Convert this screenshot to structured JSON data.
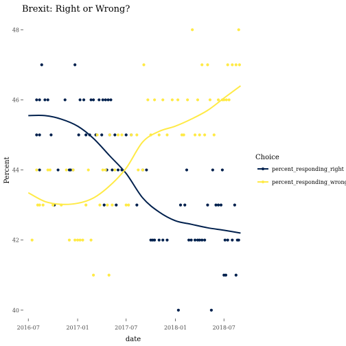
{
  "chart_data": {
    "type": "scatter",
    "title": "Brexit: Right or Wrong?",
    "xlabel": "date",
    "ylabel": "Percent",
    "x_range": [
      "2016-06-15",
      "2018-09-05"
    ],
    "ylim": [
      39.8,
      48.3
    ],
    "x_ticks": [
      {
        "date": "2016-07-01",
        "label": "2016-07"
      },
      {
        "date": "2017-01-01",
        "label": "2017-01"
      },
      {
        "date": "2017-07-01",
        "label": "2017-07"
      },
      {
        "date": "2018-01-01",
        "label": "2018-01"
      },
      {
        "date": "2018-07-01",
        "label": "2018-07"
      }
    ],
    "y_ticks": [
      40,
      42,
      44,
      46,
      48
    ],
    "grid": false,
    "legend": {
      "title": "Choice",
      "position": "right"
    },
    "series": [
      {
        "name": "percent_responding_right",
        "color": "#00204D",
        "points": [
          [
            "2016-08-01",
            45
          ],
          [
            "2016-08-01",
            46
          ],
          [
            "2016-08-12",
            45
          ],
          [
            "2016-08-12",
            46
          ],
          [
            "2016-08-12",
            44
          ],
          [
            "2016-08-20",
            47
          ],
          [
            "2016-09-01",
            46
          ],
          [
            "2016-09-12",
            46
          ],
          [
            "2016-09-24",
            45
          ],
          [
            "2016-10-06",
            43
          ],
          [
            "2016-10-20",
            44
          ],
          [
            "2016-11-15",
            46
          ],
          [
            "2016-12-01",
            44
          ],
          [
            "2016-12-06",
            44
          ],
          [
            "2016-12-15",
            44
          ],
          [
            "2016-12-22",
            47
          ],
          [
            "2017-01-05",
            45
          ],
          [
            "2017-01-10",
            46
          ],
          [
            "2017-01-24",
            46
          ],
          [
            "2017-02-01",
            45
          ],
          [
            "2017-02-15",
            45
          ],
          [
            "2017-02-20",
            46
          ],
          [
            "2017-03-01",
            46
          ],
          [
            "2017-03-10",
            45
          ],
          [
            "2017-03-22",
            46
          ],
          [
            "2017-04-01",
            45
          ],
          [
            "2017-04-05",
            46
          ],
          [
            "2017-04-10",
            43
          ],
          [
            "2017-04-15",
            46
          ],
          [
            "2017-04-20",
            44
          ],
          [
            "2017-04-25",
            46
          ],
          [
            "2017-05-01",
            45
          ],
          [
            "2017-05-05",
            46
          ],
          [
            "2017-05-10",
            44
          ],
          [
            "2017-05-20",
            45
          ],
          [
            "2017-05-25",
            43
          ],
          [
            "2017-06-01",
            44
          ],
          [
            "2017-06-15",
            44
          ],
          [
            "2017-07-01",
            45
          ],
          [
            "2017-07-20",
            45
          ],
          [
            "2017-08-10",
            43
          ],
          [
            "2017-09-01",
            44
          ],
          [
            "2017-09-15",
            44
          ],
          [
            "2017-10-01",
            42
          ],
          [
            "2017-10-08",
            42
          ],
          [
            "2017-10-15",
            42
          ],
          [
            "2017-11-01",
            42
          ],
          [
            "2017-11-15",
            42
          ],
          [
            "2017-12-01",
            42
          ],
          [
            "2018-01-12",
            40
          ],
          [
            "2018-01-20",
            43
          ],
          [
            "2018-02-05",
            43
          ],
          [
            "2018-02-12",
            44
          ],
          [
            "2018-02-20",
            42
          ],
          [
            "2018-03-01",
            42
          ],
          [
            "2018-03-15",
            42
          ],
          [
            "2018-03-25",
            42
          ],
          [
            "2018-04-01",
            42
          ],
          [
            "2018-04-10",
            42
          ],
          [
            "2018-04-20",
            42
          ],
          [
            "2018-05-01",
            43
          ],
          [
            "2018-05-15",
            40
          ],
          [
            "2018-05-20",
            44
          ],
          [
            "2018-06-01",
            43
          ],
          [
            "2018-06-10",
            43
          ],
          [
            "2018-06-20",
            43
          ],
          [
            "2018-06-25",
            44
          ],
          [
            "2018-07-01",
            41
          ],
          [
            "2018-07-05",
            42
          ],
          [
            "2018-07-08",
            41
          ],
          [
            "2018-07-15",
            42
          ],
          [
            "2018-08-01",
            42
          ],
          [
            "2018-08-10",
            43
          ],
          [
            "2018-08-15",
            41
          ],
          [
            "2018-08-20",
            42
          ],
          [
            "2018-08-25",
            42
          ]
        ],
        "trend": [
          [
            "2016-07-01",
            45.55
          ],
          [
            "2016-09-01",
            45.55
          ],
          [
            "2016-11-01",
            45.45
          ],
          [
            "2017-01-01",
            45.25
          ],
          [
            "2017-03-01",
            44.9
          ],
          [
            "2017-05-01",
            44.4
          ],
          [
            "2017-07-01",
            43.9
          ],
          [
            "2017-09-01",
            43.2
          ],
          [
            "2017-11-01",
            42.8
          ],
          [
            "2018-01-01",
            42.55
          ],
          [
            "2018-03-01",
            42.45
          ],
          [
            "2018-05-01",
            42.35
          ],
          [
            "2018-07-01",
            42.28
          ],
          [
            "2018-09-01",
            42.2
          ]
        ]
      },
      {
        "name": "percent_responding_wrong",
        "color": "#FFEA46",
        "points": [
          [
            "2016-07-15",
            42
          ],
          [
            "2016-08-01",
            44
          ],
          [
            "2016-08-05",
            43
          ],
          [
            "2016-08-12",
            43
          ],
          [
            "2016-08-25",
            43
          ],
          [
            "2016-09-12",
            44
          ],
          [
            "2016-09-20",
            44
          ],
          [
            "2016-10-01",
            43
          ],
          [
            "2016-11-01",
            43
          ],
          [
            "2016-11-20",
            44
          ],
          [
            "2016-12-01",
            42
          ],
          [
            "2016-12-15",
            44
          ],
          [
            "2016-12-22",
            42
          ],
          [
            "2017-01-01",
            42
          ],
          [
            "2017-01-10",
            42
          ],
          [
            "2017-01-20",
            42
          ],
          [
            "2017-02-01",
            43
          ],
          [
            "2017-02-10",
            44
          ],
          [
            "2017-02-20",
            42
          ],
          [
            "2017-03-01",
            41
          ],
          [
            "2017-03-15",
            45
          ],
          [
            "2017-03-25",
            43
          ],
          [
            "2017-04-05",
            44
          ],
          [
            "2017-04-15",
            44
          ],
          [
            "2017-04-22",
            43
          ],
          [
            "2017-04-28",
            41
          ],
          [
            "2017-05-01",
            45
          ],
          [
            "2017-05-10",
            43
          ],
          [
            "2017-05-20",
            44
          ],
          [
            "2017-06-01",
            45
          ],
          [
            "2017-06-15",
            45
          ],
          [
            "2017-07-01",
            43
          ],
          [
            "2017-07-10",
            43
          ],
          [
            "2017-07-20",
            45
          ],
          [
            "2017-08-10",
            45
          ],
          [
            "2017-08-15",
            44
          ],
          [
            "2017-09-01",
            44
          ],
          [
            "2017-09-05",
            47
          ],
          [
            "2017-09-20",
            46
          ],
          [
            "2017-10-01",
            45
          ],
          [
            "2017-10-15",
            46
          ],
          [
            "2017-11-01",
            45
          ],
          [
            "2017-11-15",
            46
          ],
          [
            "2017-12-01",
            45
          ],
          [
            "2017-12-20",
            46
          ],
          [
            "2018-01-10",
            46
          ],
          [
            "2018-01-25",
            45
          ],
          [
            "2018-02-01",
            45
          ],
          [
            "2018-02-15",
            46
          ],
          [
            "2018-03-05",
            48
          ],
          [
            "2018-03-15",
            45
          ],
          [
            "2018-03-25",
            46
          ],
          [
            "2018-04-01",
            45
          ],
          [
            "2018-04-10",
            47
          ],
          [
            "2018-04-20",
            45
          ],
          [
            "2018-05-01",
            47
          ],
          [
            "2018-05-10",
            46
          ],
          [
            "2018-05-25",
            45
          ],
          [
            "2018-06-10",
            46
          ],
          [
            "2018-06-25",
            46
          ],
          [
            "2018-07-01",
            46
          ],
          [
            "2018-07-10",
            46
          ],
          [
            "2018-07-15",
            47
          ],
          [
            "2018-07-20",
            46
          ],
          [
            "2018-08-01",
            47
          ],
          [
            "2018-08-15",
            47
          ],
          [
            "2018-08-25",
            48
          ],
          [
            "2018-08-28",
            47
          ]
        ],
        "trend": [
          [
            "2016-07-01",
            43.35
          ],
          [
            "2016-09-01",
            43.1
          ],
          [
            "2016-11-01",
            43.02
          ],
          [
            "2017-01-01",
            43.05
          ],
          [
            "2017-03-01",
            43.2
          ],
          [
            "2017-05-01",
            43.55
          ],
          [
            "2017-07-01",
            44.05
          ],
          [
            "2017-09-01",
            44.8
          ],
          [
            "2017-11-01",
            45.1
          ],
          [
            "2018-01-01",
            45.25
          ],
          [
            "2018-03-01",
            45.45
          ],
          [
            "2018-05-01",
            45.7
          ],
          [
            "2018-07-01",
            46.05
          ],
          [
            "2018-09-01",
            46.4
          ]
        ]
      }
    ]
  }
}
